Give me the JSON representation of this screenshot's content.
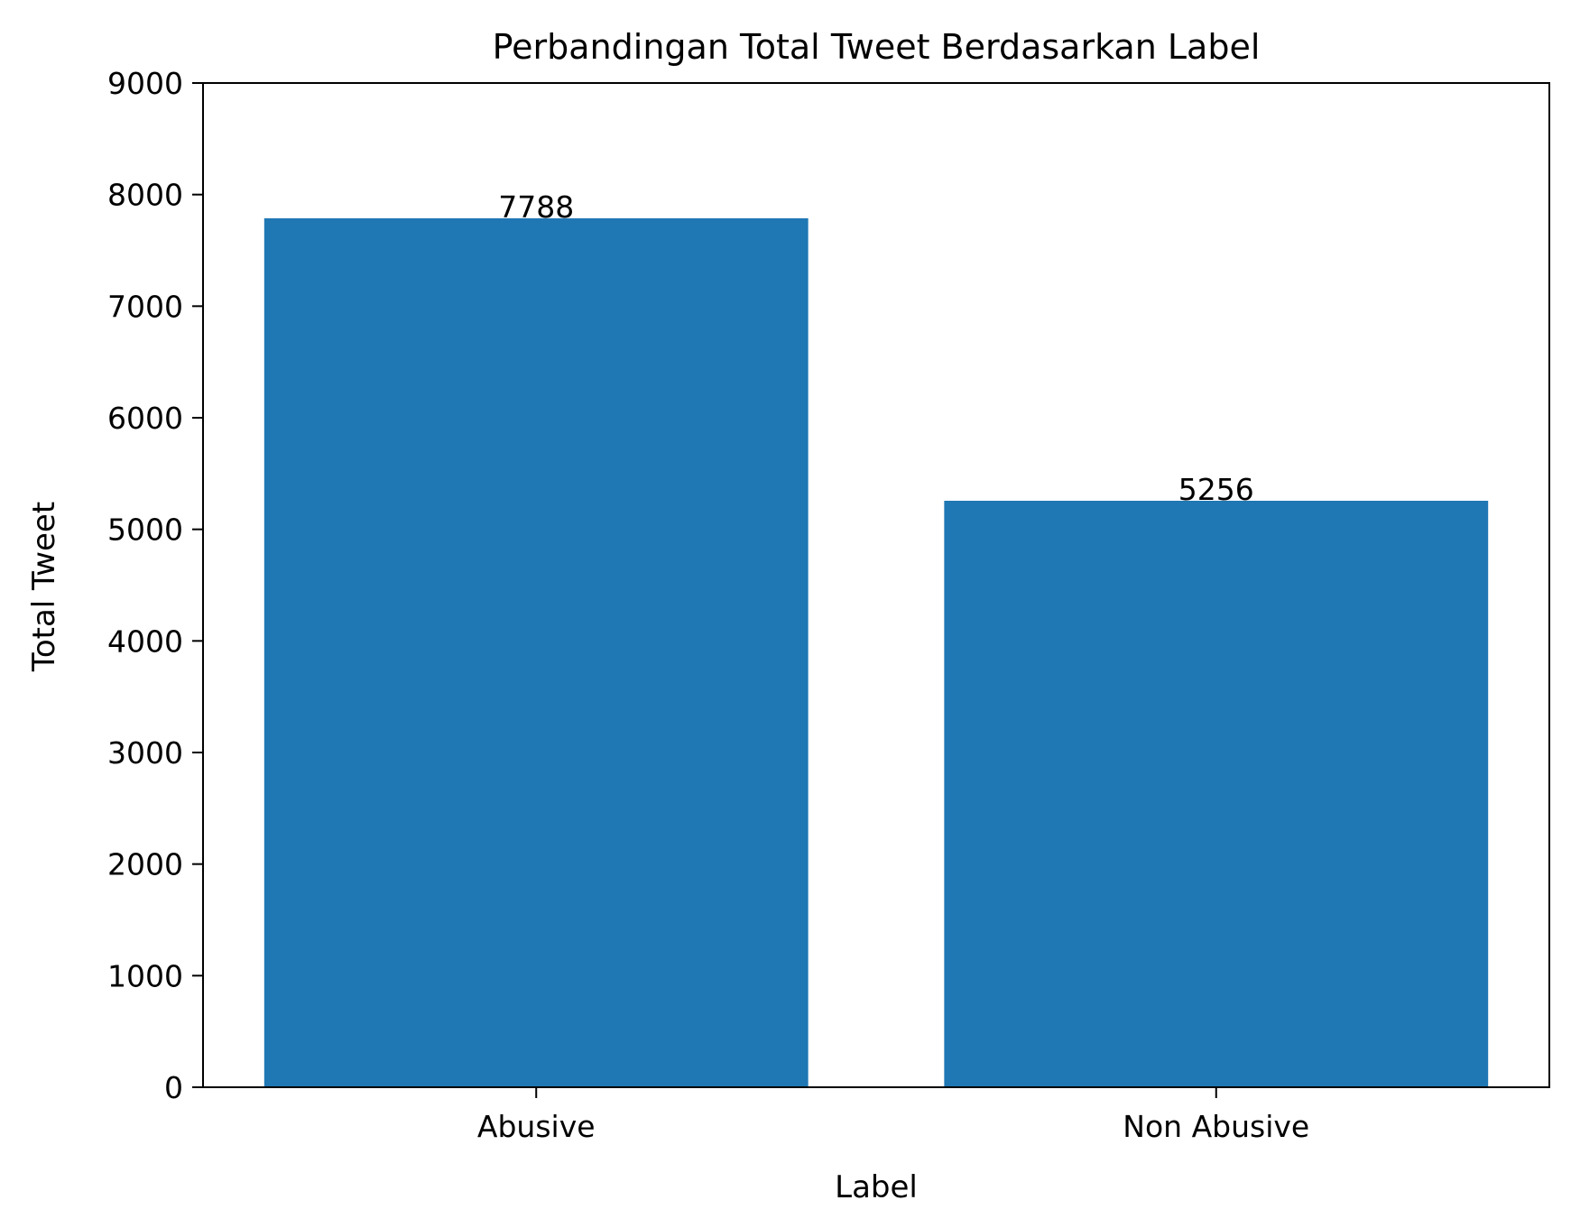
{
  "chart_data": {
    "type": "bar",
    "title": "Perbandingan Total Tweet Berdasarkan Label",
    "xlabel": "Label",
    "ylabel": "Total Tweet",
    "categories": [
      "Abusive",
      "Non Abusive"
    ],
    "values": [
      7788,
      5256
    ],
    "data_labels": [
      "7788",
      "5256"
    ],
    "ylim": [
      0,
      9000
    ],
    "yticks": [
      0,
      1000,
      2000,
      3000,
      4000,
      5000,
      6000,
      7000,
      8000,
      9000
    ],
    "ytick_labels": [
      "0",
      "1000",
      "2000",
      "3000",
      "4000",
      "5000",
      "6000",
      "7000",
      "8000",
      "9000"
    ],
    "bar_color": "#1f77b4",
    "grid": false,
    "legend": "none"
  }
}
